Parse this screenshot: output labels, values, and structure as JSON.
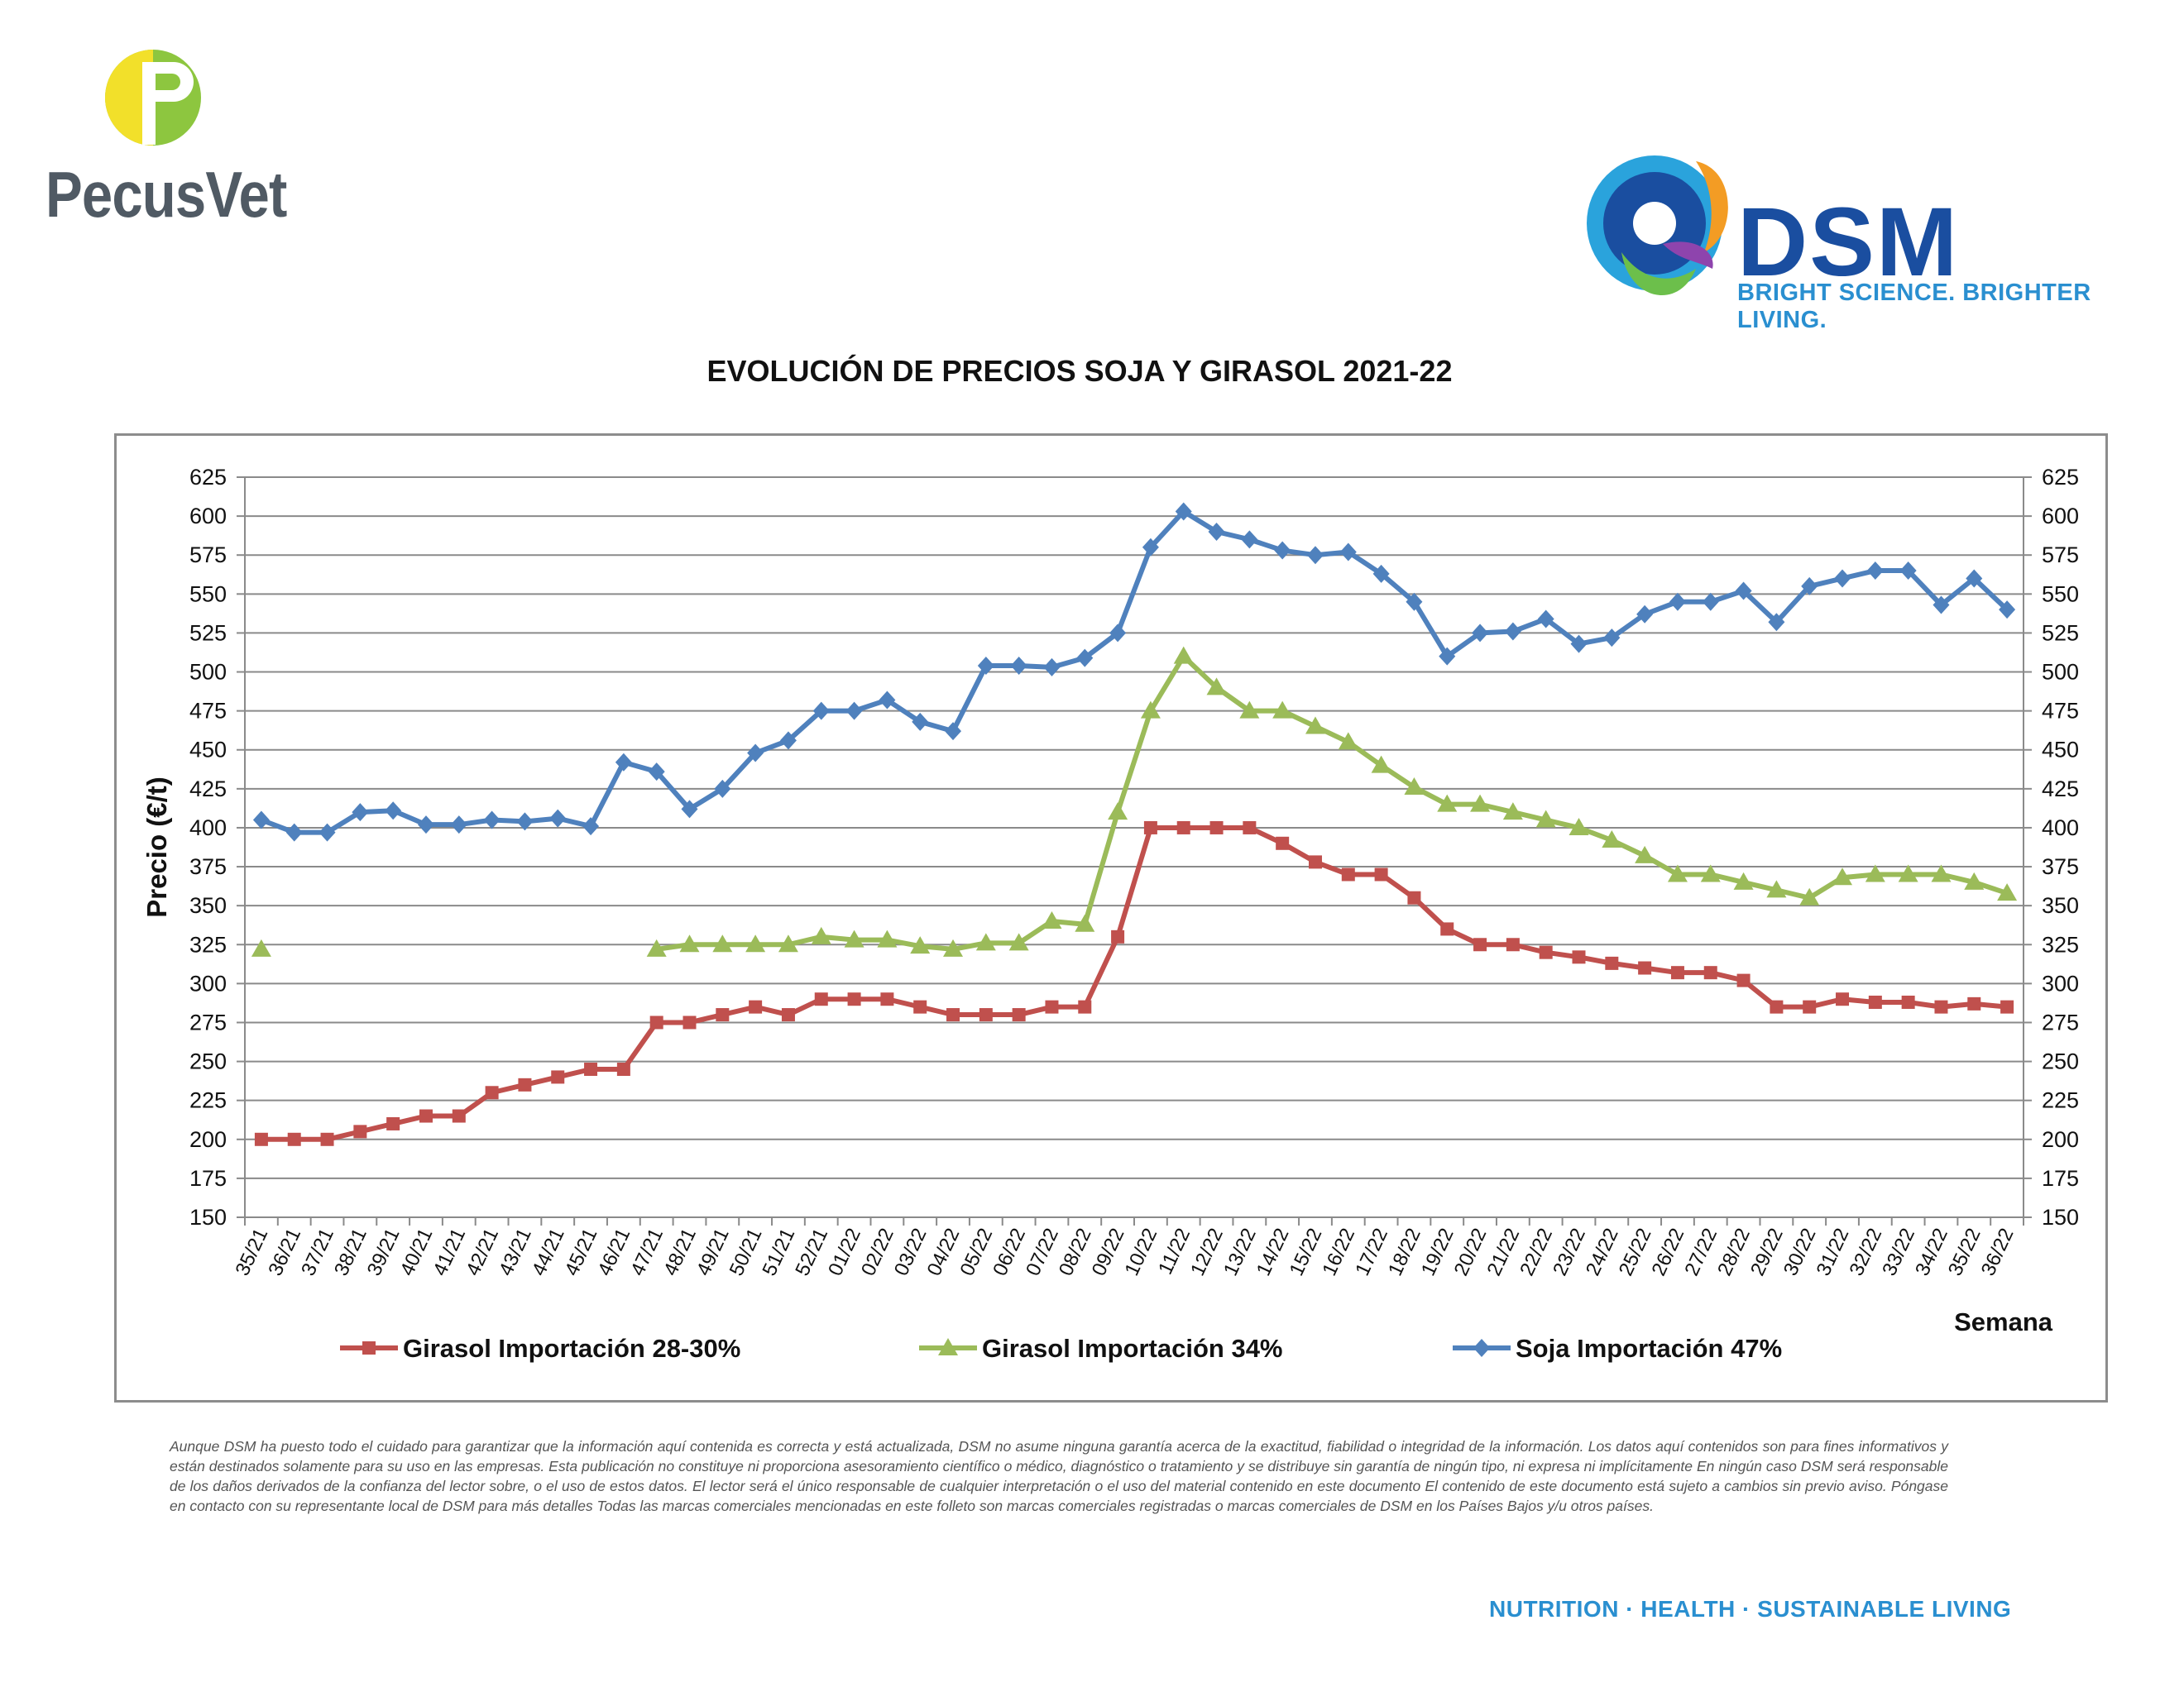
{
  "header": {
    "left_logo_text": "PecusVet",
    "right_logo_text": "DSM",
    "right_logo_tagline": "BRIGHT SCIENCE. BRIGHTER LIVING."
  },
  "colors": {
    "girasol_28_30": "#c0504d",
    "girasol_34": "#9bbb59",
    "soja_47": "#4f81bd",
    "pecusvet_green": "#8dc63f",
    "pecusvet_yellow": "#f2e02a",
    "dsm_blue": "#1a4ea0",
    "dsm_tag_blue": "#2a8fd0"
  },
  "chart_data": {
    "type": "line",
    "title": "EVOLUCIÓN DE PRECIOS SOJA Y GIRASOL 2021-22",
    "xlabel": "Semana",
    "ylabel": "Precio (€/t)",
    "ylim": [
      150,
      625
    ],
    "ytick_step": 25,
    "secondary_axis": true,
    "grid": "horizontal",
    "legend_position": "bottom",
    "categories": [
      "35/21",
      "36/21",
      "37/21",
      "38/21",
      "39/21",
      "40/21",
      "41/21",
      "42/21",
      "43/21",
      "44/21",
      "45/21",
      "46/21",
      "47/21",
      "48/21",
      "49/21",
      "50/21",
      "51/21",
      "52/21",
      "01/22",
      "02/22",
      "03/22",
      "04/22",
      "05/22",
      "06/22",
      "07/22",
      "08/22",
      "09/22",
      "10/22",
      "11/22",
      "12/22",
      "13/22",
      "14/22",
      "15/22",
      "16/22",
      "17/22",
      "18/22",
      "19/22",
      "20/22",
      "21/22",
      "22/22",
      "23/22",
      "24/22",
      "25/22",
      "26/22",
      "27/22",
      "28/22",
      "29/22",
      "30/22",
      "31/22",
      "32/22",
      "33/22",
      "34/22",
      "35/22",
      "36/22"
    ],
    "series": [
      {
        "name": "Girasol Importación 28-30%",
        "color": "#c0504d",
        "marker": "square",
        "values": [
          200,
          200,
          200,
          205,
          210,
          215,
          215,
          230,
          235,
          240,
          245,
          245,
          275,
          275,
          280,
          285,
          280,
          290,
          290,
          290,
          285,
          280,
          280,
          280,
          285,
          285,
          330,
          400,
          400,
          400,
          400,
          390,
          378,
          370,
          370,
          355,
          335,
          325,
          325,
          320,
          317,
          313,
          310,
          307,
          307,
          302,
          285,
          285,
          290,
          288,
          288,
          285,
          287,
          285
        ]
      },
      {
        "name": "Girasol Importación 34%",
        "color": "#9bbb59",
        "marker": "triangle",
        "values": [
          322,
          null,
          null,
          null,
          null,
          null,
          null,
          null,
          null,
          null,
          null,
          null,
          322,
          325,
          325,
          325,
          325,
          330,
          328,
          328,
          324,
          322,
          326,
          326,
          340,
          338,
          410,
          475,
          510,
          490,
          475,
          475,
          465,
          455,
          440,
          426,
          415,
          415,
          410,
          405,
          400,
          392,
          382,
          370,
          370,
          365,
          360,
          355,
          368,
          370,
          370,
          370,
          365,
          358
        ]
      },
      {
        "name": "Soja Importación 47%",
        "color": "#4f81bd",
        "marker": "diamond",
        "values": [
          405,
          397,
          397,
          410,
          411,
          402,
          402,
          405,
          404,
          406,
          401,
          442,
          436,
          412,
          425,
          448,
          456,
          475,
          475,
          482,
          468,
          462,
          504,
          504,
          503,
          509,
          525,
          580,
          603,
          590,
          585,
          578,
          575,
          577,
          563,
          545,
          510,
          525,
          526,
          534,
          518,
          522,
          537,
          545,
          545,
          552,
          532,
          555,
          560,
          565,
          565,
          543,
          560,
          540
        ]
      }
    ]
  },
  "disclaimer": "Aunque DSM ha puesto todo el cuidado para garantizar que la información aquí contenida es correcta y está actualizada, DSM no asume ninguna garantía acerca de la exactitud, fiabilidad o integridad de la información. Los datos aquí contenidos son para fines informativos y están destinados solamente para su uso en las empresas. Esta publicación no constituye ni proporciona asesoramiento científico o médico, diagnóstico o tratamiento y se distribuye sin garantía de ningún tipo, ni expresa ni implícitamente En ningún caso DSM será responsable de los daños derivados de la confianza del lector sobre, o el uso de estos datos. El lector será el único responsable de cualquier interpretación o el uso del material contenido en este documento El contenido de este documento está sujeto a cambios sin previo aviso. Póngase en contacto con su representante local de DSM para más detalles Todas las marcas comerciales mencionadas en este folleto son marcas comerciales registradas o marcas comerciales de DSM en los Países Bajos y/u otros países.",
  "footer": "NUTRITION · HEALTH · SUSTAINABLE LIVING"
}
